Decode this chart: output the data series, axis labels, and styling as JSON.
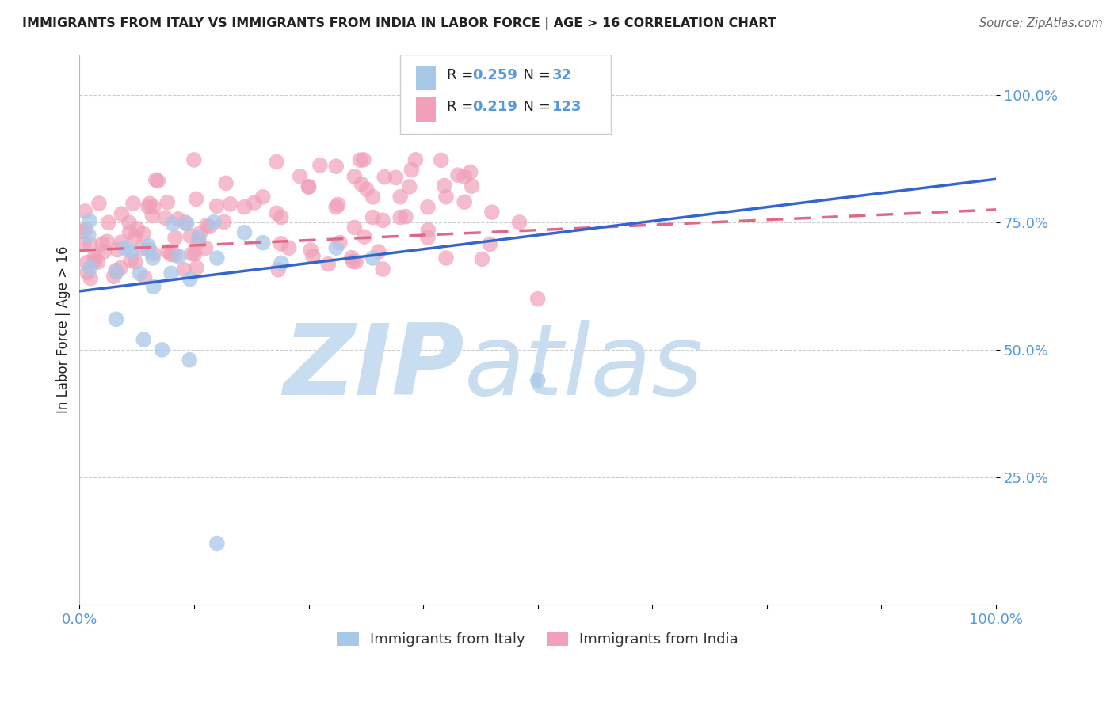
{
  "title": "IMMIGRANTS FROM ITALY VS IMMIGRANTS FROM INDIA IN LABOR FORCE | AGE > 16 CORRELATION CHART",
  "source": "Source: ZipAtlas.com",
  "ylabel": "In Labor Force | Age > 16",
  "ytick_labels": [
    "25.0%",
    "50.0%",
    "75.0%",
    "100.0%"
  ],
  "ytick_values": [
    0.25,
    0.5,
    0.75,
    1.0
  ],
  "legend_italy_R": "0.259",
  "legend_italy_N": "32",
  "legend_india_R": "0.219",
  "legend_india_N": "123",
  "legend_label_italy": "Immigrants from Italy",
  "legend_label_india": "Immigrants from India",
  "italy_color": "#a8c8e8",
  "india_color": "#f0a0b8",
  "italy_line_color": "#3366cc",
  "india_line_color": "#e06888",
  "italy_line_x0": 0.0,
  "italy_line_y0": 0.615,
  "italy_line_x1": 1.0,
  "italy_line_y1": 0.835,
  "india_line_x0": 0.0,
  "india_line_y0": 0.695,
  "india_line_x1": 1.0,
  "india_line_y1": 0.775,
  "watermark_zip": "ZIP",
  "watermark_atlas": "atlas",
  "watermark_color": "#c8ddf0",
  "xlim": [
    0.0,
    1.0
  ],
  "ylim": [
    0.0,
    1.08
  ],
  "background_color": "#ffffff",
  "grid_color": "#cccccc",
  "tick_color": "#5599dd",
  "spine_color": "#bbbbbb",
  "title_color": "#222222",
  "source_color": "#666666",
  "ylabel_color": "#222222"
}
